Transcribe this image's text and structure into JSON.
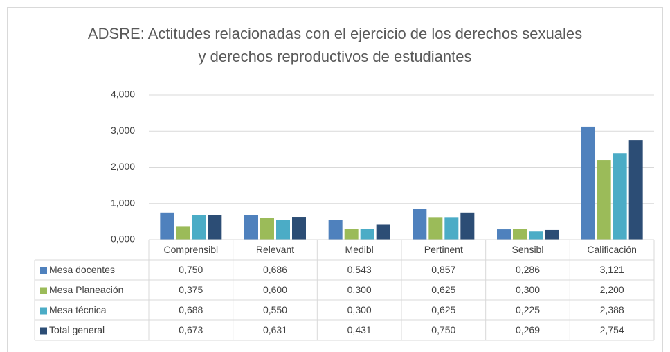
{
  "chart_data": {
    "type": "bar",
    "title": "ADSRE: Actitudes relacionadas con el ejercicio de los derechos sexuales y derechos reproductivos de estudiantes",
    "categories": [
      "Comprensibl",
      "Relevant",
      "Medibl",
      "Pertinent",
      "Sensibl",
      "Calificación"
    ],
    "series": [
      {
        "name": "Mesa docentes",
        "color": "#4f81bd",
        "values": [
          0.75,
          0.686,
          0.543,
          0.857,
          0.286,
          3.121
        ],
        "value_labels": [
          "0,750",
          "0,686",
          "0,543",
          "0,857",
          "0,286",
          "3,121"
        ]
      },
      {
        "name": "Mesa Planeación",
        "color": "#9bbb59",
        "values": [
          0.375,
          0.6,
          0.3,
          0.625,
          0.3,
          2.2
        ],
        "value_labels": [
          "0,375",
          "0,600",
          "0,300",
          "0,625",
          "0,300",
          "2,200"
        ]
      },
      {
        "name": "Mesa técnica",
        "color": "#4bacc6",
        "values": [
          0.688,
          0.55,
          0.3,
          0.625,
          0.225,
          2.388
        ],
        "value_labels": [
          "0,688",
          "0,550",
          "0,300",
          "0,625",
          "0,225",
          "2,388"
        ]
      },
      {
        "name": "Total general",
        "color": "#2c4d75",
        "values": [
          0.673,
          0.631,
          0.431,
          0.75,
          0.269,
          2.754
        ],
        "value_labels": [
          "0,673",
          "0,631",
          "0,431",
          "0,750",
          "0,269",
          "2,754"
        ]
      }
    ],
    "ylim": [
      0,
      4
    ],
    "yticks": [
      {
        "value": 0,
        "label": "0,000"
      },
      {
        "value": 1,
        "label": "1,000"
      },
      {
        "value": 2,
        "label": "2,000"
      },
      {
        "value": 3,
        "label": "3,000"
      },
      {
        "value": 4,
        "label": "4,000"
      }
    ],
    "grid": true
  }
}
